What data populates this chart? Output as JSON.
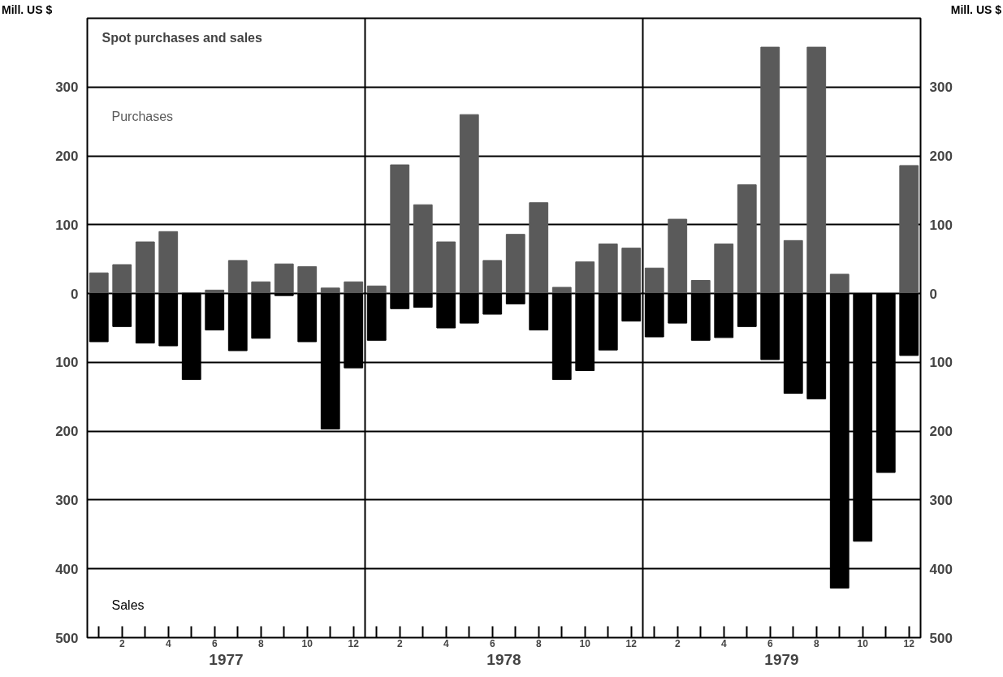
{
  "chart_data": {
    "type": "bar",
    "title": "Spot purchases and sales",
    "ylabel": "Mill. US $",
    "y2label": "Mill. US $",
    "categories": [
      null,
      "2",
      null,
      "4",
      null,
      "6",
      null,
      "8",
      null,
      "10",
      null,
      "12",
      null,
      "2",
      null,
      "4",
      null,
      "6",
      null,
      "8",
      null,
      "10",
      null,
      "12",
      null,
      "2",
      null,
      "4",
      null,
      "6",
      null,
      "8",
      null,
      "10",
      null,
      "12"
    ],
    "stacked": true,
    "series": [
      {
        "name": "Purchases",
        "color": "#5a5a5a",
        "values": [
          30,
          42,
          75,
          90,
          1,
          5,
          48,
          17,
          43,
          39,
          8,
          17,
          11,
          187,
          129,
          75,
          260,
          48,
          86,
          132,
          9,
          46,
          72,
          66,
          37,
          108,
          19,
          72,
          158,
          358,
          77,
          358,
          28,
          0,
          0,
          186
        ]
      },
      {
        "name": "Sales",
        "color": "#000000",
        "values": [
          -70,
          -48,
          -72,
          -76,
          -125,
          -53,
          -83,
          -65,
          -3,
          -70,
          -197,
          -108,
          -68,
          -22,
          -20,
          -50,
          -43,
          -30,
          -15,
          -53,
          -125,
          -112,
          -82,
          -40,
          -63,
          -43,
          -68,
          -64,
          -48,
          -96,
          -145,
          -153,
          -428,
          -360,
          -260,
          -90
        ]
      }
    ],
    "ylim": [
      -500,
      400
    ],
    "yticks": [
      {
        "value": -500,
        "label": "500"
      },
      {
        "value": -400,
        "label": "400"
      },
      {
        "value": -300,
        "label": "300"
      },
      {
        "value": -200,
        "label": "200"
      },
      {
        "value": -100,
        "label": "100"
      },
      0,
      100,
      200,
      300
    ],
    "y2lim": [
      -500,
      400
    ],
    "y2ticks": [
      {
        "value": -500,
        "label": "500"
      },
      {
        "value": -400,
        "label": "400"
      },
      {
        "value": -300,
        "label": "300"
      },
      {
        "value": -200,
        "label": "200"
      },
      {
        "value": -100,
        "label": "100"
      },
      0,
      100,
      200,
      300
    ],
    "grid": "y",
    "annotations": [
      "1977",
      "1978",
      "1979"
    ]
  }
}
